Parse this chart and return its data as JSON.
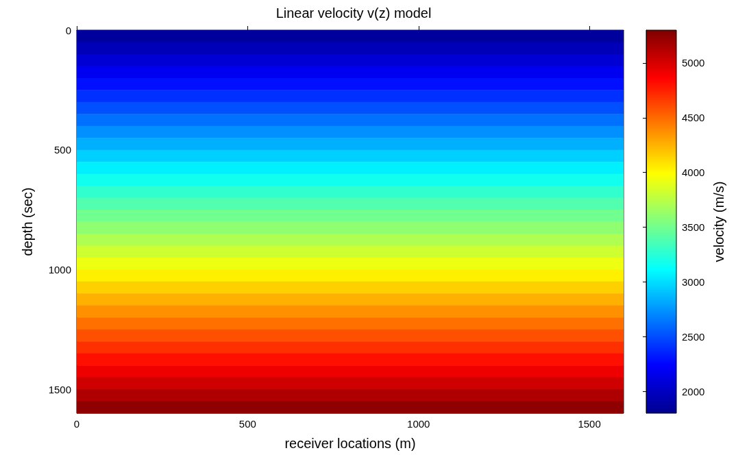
{
  "chart_data": {
    "type": "heatmap",
    "title": "Linear velocity v(z) model",
    "xlabel": "receiver locations (m)",
    "ylabel": "depth (sec)",
    "clabel": "velocity (m/s)",
    "xlim": [
      0,
      1600
    ],
    "xticks": [
      0,
      500,
      1000,
      1500
    ],
    "ylim": [
      1600,
      0
    ],
    "yticks": [
      0,
      500,
      1000,
      1500
    ],
    "clim": [
      1800,
      5300
    ],
    "cticks": [
      2000,
      2500,
      3000,
      3500,
      4000,
      4500,
      5000
    ],
    "cells": [
      [
        1850
      ],
      [
        1960
      ],
      [
        2070
      ],
      [
        2180
      ],
      [
        2290
      ],
      [
        2400
      ],
      [
        2510
      ],
      [
        2620
      ],
      [
        2730
      ],
      [
        2840
      ],
      [
        2950
      ],
      [
        3060
      ],
      [
        3170
      ],
      [
        3280
      ],
      [
        3390
      ],
      [
        3500
      ],
      [
        3600
      ],
      [
        3710
      ],
      [
        3820
      ],
      [
        3930
      ],
      [
        4040
      ],
      [
        4150
      ],
      [
        4260
      ],
      [
        4370
      ],
      [
        4480
      ],
      [
        4590
      ],
      [
        4700
      ],
      [
        4810
      ],
      [
        4920
      ],
      [
        5030
      ],
      [
        5140
      ],
      [
        5250
      ]
    ]
  }
}
